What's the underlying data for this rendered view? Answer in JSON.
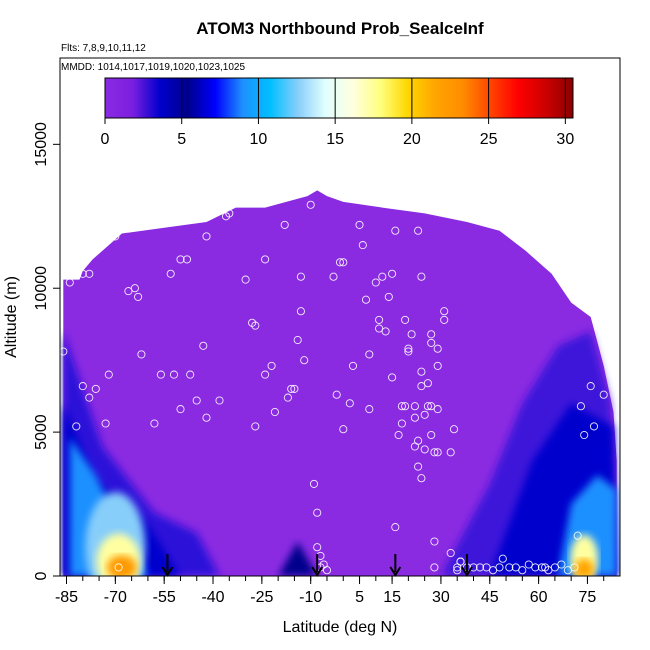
{
  "chart_data": {
    "type": "heatmap",
    "title": "ATOM3 Northbound Prob_SealceInf",
    "flights_label": "Flts: 7,8,9,10,11,12",
    "dates_label": "MMDD: 1014,1017,1019,1020,1023,1025",
    "xlabel": "Latitude (deg N)",
    "ylabel": "Altitude (m)",
    "xlim": [
      -87,
      85
    ],
    "ylim": [
      0,
      18000
    ],
    "xticks": [
      -85,
      -70,
      -55,
      -40,
      -25,
      -10,
      5,
      15,
      30,
      45,
      60,
      75
    ],
    "yticks": [
      0,
      5000,
      10000,
      15000
    ],
    "grid": false,
    "colorbar": {
      "range": [
        0,
        30.5
      ],
      "ticks": [
        0,
        5,
        10,
        15,
        20,
        25,
        30
      ],
      "colors": [
        "#8a2be2",
        "#7b1fe0",
        "#0000cd",
        "#00008b",
        "#0000ff",
        "#1e90ff",
        "#00bfff",
        "#87cefa",
        "#e0ffff",
        "#ffffe0",
        "#ffff80",
        "#ffd700",
        "#ffa500",
        "#ff8c00",
        "#ff4500",
        "#ff0000",
        "#cd0000",
        "#8b0000"
      ]
    },
    "arrows_x": [
      -54,
      -8,
      16,
      38
    ],
    "points": [
      [
        -86,
        7800
      ],
      [
        -84,
        10200
      ],
      [
        -82,
        5200
      ],
      [
        -80,
        6600
      ],
      [
        -80,
        10500
      ],
      [
        -78,
        10500
      ],
      [
        -78,
        6200
      ],
      [
        -76,
        6500
      ],
      [
        -73,
        5300
      ],
      [
        -72,
        7000
      ],
      [
        -70,
        11800
      ],
      [
        -69,
        300
      ],
      [
        -66,
        9900
      ],
      [
        -64,
        10000
      ],
      [
        -63,
        9700
      ],
      [
        -62,
        7700
      ],
      [
        -58,
        5300
      ],
      [
        -56,
        7000
      ],
      [
        -53,
        10500
      ],
      [
        -52,
        7000
      ],
      [
        -50,
        5800
      ],
      [
        -50,
        11000
      ],
      [
        -48,
        11000
      ],
      [
        -47,
        7000
      ],
      [
        -45,
        6100
      ],
      [
        -43,
        8000
      ],
      [
        -42,
        5500
      ],
      [
        -42,
        11800
      ],
      [
        -38,
        6100
      ],
      [
        -36,
        12500
      ],
      [
        -35,
        12600
      ],
      [
        -33,
        13200
      ],
      [
        -30,
        10300
      ],
      [
        -28,
        8800
      ],
      [
        -27,
        8700
      ],
      [
        -27,
        5200
      ],
      [
        -24,
        11000
      ],
      [
        -24,
        7000
      ],
      [
        -22,
        7300
      ],
      [
        -21,
        5700
      ],
      [
        -18,
        12200
      ],
      [
        -17,
        6200
      ],
      [
        -16,
        6500
      ],
      [
        -15,
        6500
      ],
      [
        -14,
        8200
      ],
      [
        -13,
        9200
      ],
      [
        -13,
        10400
      ],
      [
        -12,
        7500
      ],
      [
        -10,
        12900
      ],
      [
        -9,
        3200
      ],
      [
        -8,
        2200
      ],
      [
        -8,
        1000
      ],
      [
        -7,
        700
      ],
      [
        -7,
        300
      ],
      [
        -6,
        400
      ],
      [
        -5,
        200
      ],
      [
        -3,
        10400
      ],
      [
        -2,
        6300
      ],
      [
        -1,
        10900
      ],
      [
        0,
        10900
      ],
      [
        0,
        5100
      ],
      [
        2,
        6000
      ],
      [
        3,
        7300
      ],
      [
        5,
        12200
      ],
      [
        6,
        11500
      ],
      [
        7,
        9600
      ],
      [
        8,
        5800
      ],
      [
        8,
        7700
      ],
      [
        10,
        10200
      ],
      [
        11,
        8900
      ],
      [
        11,
        8600
      ],
      [
        12,
        10400
      ],
      [
        13,
        8500
      ],
      [
        14,
        9700
      ],
      [
        15,
        10500
      ],
      [
        15,
        6900
      ],
      [
        16,
        12000
      ],
      [
        16,
        1700
      ],
      [
        17,
        4900
      ],
      [
        18,
        5300
      ],
      [
        18,
        5900
      ],
      [
        19,
        5900
      ],
      [
        19,
        8900
      ],
      [
        20,
        7800
      ],
      [
        20,
        7900
      ],
      [
        21,
        8400
      ],
      [
        22,
        5900
      ],
      [
        22,
        4500
      ],
      [
        22,
        5500
      ],
      [
        23,
        12000
      ],
      [
        23,
        4700
      ],
      [
        23,
        3800
      ],
      [
        24,
        3400
      ],
      [
        24,
        7100
      ],
      [
        24,
        10400
      ],
      [
        24,
        6600
      ],
      [
        25,
        4400
      ],
      [
        25,
        5600
      ],
      [
        26,
        5900
      ],
      [
        26,
        6700
      ],
      [
        27,
        8100
      ],
      [
        27,
        8400
      ],
      [
        27,
        5900
      ],
      [
        27,
        4900
      ],
      [
        28,
        4300
      ],
      [
        28,
        1200
      ],
      [
        28,
        300
      ],
      [
        29,
        4300
      ],
      [
        29,
        7300
      ],
      [
        29,
        7900
      ],
      [
        29,
        5800
      ],
      [
        31,
        8900
      ],
      [
        31,
        9200
      ],
      [
        33,
        4300
      ],
      [
        33,
        800
      ],
      [
        34,
        5100
      ],
      [
        35,
        300
      ],
      [
        35,
        200
      ],
      [
        36,
        500
      ],
      [
        36,
        500
      ],
      [
        38,
        300
      ],
      [
        40,
        300
      ],
      [
        42,
        300
      ],
      [
        44,
        300
      ],
      [
        46,
        200
      ],
      [
        48,
        300
      ],
      [
        49,
        600
      ],
      [
        51,
        300
      ],
      [
        53,
        300
      ],
      [
        55,
        200
      ],
      [
        57,
        400
      ],
      [
        59,
        300
      ],
      [
        61,
        300
      ],
      [
        62,
        300
      ],
      [
        63,
        200
      ],
      [
        65,
        300
      ],
      [
        67,
        400
      ],
      [
        69,
        200
      ],
      [
        71,
        300
      ],
      [
        72,
        1400
      ],
      [
        73,
        5900
      ],
      [
        74,
        4900
      ],
      [
        76,
        6600
      ],
      [
        77,
        5200
      ],
      [
        78,
        9100
      ],
      [
        78,
        8800
      ],
      [
        80,
        10500
      ],
      [
        80,
        6300
      ]
    ]
  }
}
